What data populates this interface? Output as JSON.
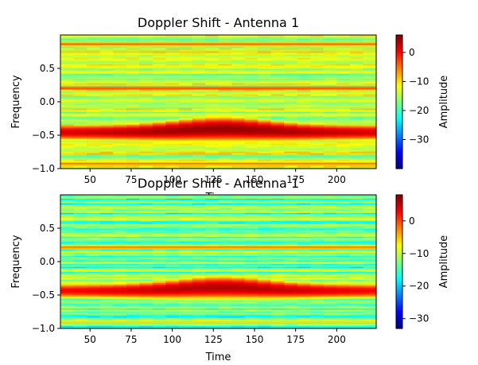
{
  "chart_data": [
    {
      "type": "heatmap",
      "title": "Doppler Shift - Antenna 1",
      "xlabel": "Time",
      "ylabel": "Frequency",
      "colorbar_label": "Amplitude",
      "colormap": "jet",
      "xlim": [
        32,
        224
      ],
      "ylim": [
        -1.0,
        1.0
      ],
      "xticks": [
        50,
        75,
        100,
        125,
        150,
        175,
        200
      ],
      "yticks": [
        -1.0,
        -0.5,
        0.0,
        0.5
      ],
      "ytick_labels": [
        "−1.0",
        "−0.5",
        "0.0",
        "0.5"
      ],
      "clim": [
        -40,
        6
      ],
      "cbar_ticks": [
        -30,
        -20,
        -10,
        0
      ],
      "cbar_tick_labels": [
        "−30",
        "−20",
        "−10",
        "0"
      ],
      "dominant_band": {
        "frequency": -0.45,
        "peak_amplitude": 5,
        "peak_time": 130
      },
      "secondary_bands": [
        {
          "frequency": 0.21,
          "amplitude": -3
        },
        {
          "frequency": 0.87,
          "amplitude": -4
        },
        {
          "frequency": -0.92,
          "amplitude": -5
        }
      ],
      "background_amplitude": -14
    },
    {
      "type": "heatmap",
      "title": "Doppler Shift - Antenna 1",
      "xlabel": "Time",
      "ylabel": "Frequency",
      "colorbar_label": "Amplitude",
      "colormap": "jet",
      "xlim": [
        32,
        224
      ],
      "ylim": [
        -1.0,
        1.0
      ],
      "xticks": [
        50,
        75,
        100,
        125,
        150,
        175,
        200
      ],
      "yticks": [
        -1.0,
        -0.5,
        0.0,
        0.5
      ],
      "ytick_labels": [
        "−1.0",
        "−0.5",
        "0.0",
        "0.5"
      ],
      "clim": [
        -33,
        8
      ],
      "cbar_ticks": [
        -30,
        -20,
        -10,
        0
      ],
      "cbar_tick_labels": [
        "−30",
        "−20",
        "−10",
        "0"
      ],
      "dominant_band": {
        "frequency": -0.43,
        "peak_amplitude": 6,
        "peak_time": 130
      },
      "secondary_bands": [
        {
          "frequency": 0.22,
          "amplitude": -2
        },
        {
          "frequency": -0.89,
          "amplitude": -6
        }
      ],
      "background_amplitude": -13
    }
  ]
}
